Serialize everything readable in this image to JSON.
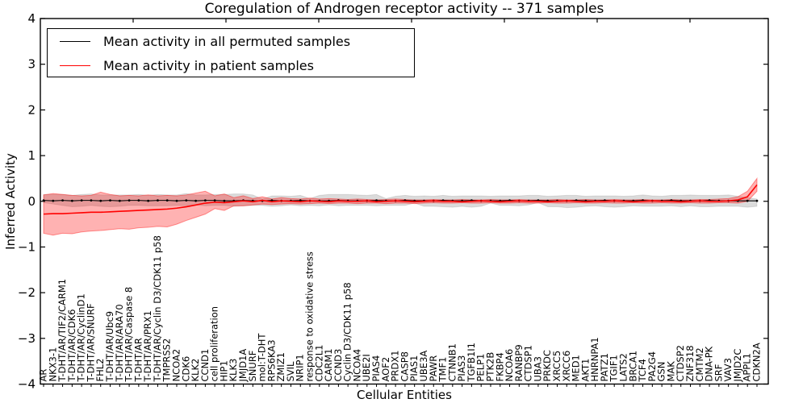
{
  "figure": {
    "title": "Coregulation of Androgen receptor activity -- 371 samples",
    "xlabel": "Cellular Entities",
    "ylabel": "Inferred Activity"
  },
  "colors": {
    "permuted_line": "#000000",
    "patient_line": "#ff0000",
    "permuted_band": "rgba(0,0,0,0.14)",
    "patient_band": "rgba(255,0,0,0.30)",
    "frame": "#000000"
  },
  "chart_data": {
    "type": "line",
    "title": "Coregulation of Androgen receptor activity -- 371 samples",
    "xlabel": "Cellular Entities",
    "ylabel": "Inferred Activity",
    "ylim": [
      -4,
      4
    ],
    "grid": false,
    "legend_position": "upper left",
    "yticks": [
      {
        "value": 4,
        "label": "4"
      },
      {
        "value": 3,
        "label": "3"
      },
      {
        "value": 2,
        "label": "2"
      },
      {
        "value": 1,
        "label": "1"
      },
      {
        "value": 0,
        "label": "0"
      },
      {
        "value": -1,
        "label": "−1"
      },
      {
        "value": -2,
        "label": "−2"
      },
      {
        "value": -3,
        "label": "−3"
      },
      {
        "value": -4,
        "label": "−4"
      }
    ],
    "categories": [
      "AR",
      "NKX3-1",
      "T-DHT/AR/TIF2/CARM1",
      "T-DHT/AR/CDK6",
      "T-DHT/AR/CyclinD1",
      "T-DHT/AR/SNURF",
      "FHL2",
      "T-DHT/AR/Ubc9",
      "T-DHT/AR/ARA70",
      "T-DHT/AR/Caspase 8",
      "T-DHT/AR",
      "T-DHT/AR/PRX1",
      "T-DHT/AR/Cyclin D3/CDK11 p58",
      "TMPRSS2",
      "NCOA2",
      "CDK6",
      "KLK2",
      "CCND1",
      "cell proliferation",
      "HIP1",
      "KLK3",
      "JMJD1A",
      "SNURF",
      "mol:T-DHT",
      "RPS6KA3",
      "ZMIZ1",
      "SVIL",
      "NRIP1",
      "response to oxidative stress",
      "CDC2L1",
      "CARM1",
      "CCND3",
      "Cyclin D3/CDK11 p58",
      "NCOA4",
      "UBE2I",
      "PIAS4",
      "AOF2",
      "PRDX1",
      "CASP8",
      "PIAS1",
      "UBE3A",
      "PAWR",
      "TMF1",
      "CTNNB1",
      "PIAS3",
      "TGFB1I1",
      "PELP1",
      "PTK2B",
      "FKBP4",
      "NCOA6",
      "RANBP9",
      "CTDSP1",
      "UBA3",
      "PRKDC",
      "XRCC5",
      "XRCC6",
      "MED1",
      "AKT1",
      "HNRNPA1",
      "PATZ1",
      "TGIF1",
      "LATS2",
      "BRCA1",
      "TCF4",
      "PA2G4",
      "GSN",
      "MAK",
      "CTDSP2",
      "ZNF318",
      "CMTM2",
      "DNA-PK",
      "SRF",
      "VAV3",
      "JMJD2C",
      "APPL1",
      "CDKN2A"
    ],
    "series": [
      {
        "name": "Mean activity in all permuted samples",
        "color": "#000000",
        "band_color": "rgba(0,0,0,0.14)",
        "markers": true,
        "values": [
          0.02,
          0.01,
          0.02,
          0.01,
          0.02,
          0.02,
          0.01,
          0.02,
          0.01,
          0.02,
          0.02,
          0.01,
          0.02,
          0.02,
          0.01,
          0.02,
          0.01,
          0.02,
          0.02,
          0.01,
          0.01,
          0.02,
          0.01,
          0.01,
          0.02,
          0.01,
          0.01,
          0.02,
          0.01,
          0.01,
          0.01,
          0.02,
          0.01,
          0.01,
          0.01,
          0.02,
          0.01,
          0.01,
          0.02,
          0.01,
          0.01,
          0.01,
          0.02,
          0.01,
          0.01,
          0.02,
          0.01,
          0.01,
          0.01,
          0.02,
          0.01,
          0.01,
          0.02,
          0.01,
          0.01,
          0.01,
          0.02,
          0.01,
          0.01,
          0.02,
          0.01,
          0.01,
          0.01,
          0.02,
          0.01,
          0.01,
          0.02,
          0.01,
          0.01,
          0.01,
          0.02,
          0.01,
          0.01,
          0.01,
          0.01,
          0.01
        ],
        "band_halfwidth": [
          0.13,
          0.14,
          0.13,
          0.12,
          0.13,
          0.14,
          0.13,
          0.12,
          0.13,
          0.12,
          0.13,
          0.12,
          0.13,
          0.12,
          0.13,
          0.15,
          0.13,
          0.12,
          0.13,
          0.14,
          0.15,
          0.14,
          0.13,
          0.04,
          0.1,
          0.11,
          0.1,
          0.11,
          0.05,
          0.12,
          0.14,
          0.13,
          0.14,
          0.13,
          0.12,
          0.13,
          0.05,
          0.1,
          0.11,
          0.1,
          0.11,
          0.1,
          0.11,
          0.1,
          0.11,
          0.1,
          0.11,
          0.1,
          0.11,
          0.1,
          0.11,
          0.12,
          0.11,
          0.1,
          0.11,
          0.12,
          0.11,
          0.1,
          0.11,
          0.1,
          0.11,
          0.1,
          0.11,
          0.12,
          0.11,
          0.1,
          0.11,
          0.12,
          0.13,
          0.12,
          0.11,
          0.12,
          0.13,
          0.1,
          0.07,
          0.04
        ]
      },
      {
        "name": "Mean activity in patient samples",
        "color": "#ff0000",
        "band_color": "rgba(255,0,0,0.30)",
        "markers": false,
        "values": [
          -0.28,
          -0.27,
          -0.27,
          -0.26,
          -0.25,
          -0.24,
          -0.24,
          -0.23,
          -0.22,
          -0.21,
          -0.2,
          -0.19,
          -0.18,
          -0.17,
          -0.15,
          -0.12,
          -0.08,
          -0.04,
          -0.02,
          -0.03,
          -0.01,
          0.01,
          -0.01,
          0.02,
          -0.01,
          0.01,
          0.0,
          -0.01,
          0.01,
          0.0,
          -0.01,
          0.01,
          0.0,
          0.0,
          0.01,
          -0.01,
          0.0,
          0.01,
          0.0,
          -0.01,
          0.0,
          0.01,
          0.0,
          0.0,
          -0.01,
          0.0,
          0.01,
          0.0,
          -0.01,
          0.0,
          0.01,
          0.0,
          0.0,
          -0.01,
          0.0,
          0.01,
          0.0,
          -0.01,
          0.0,
          0.0,
          0.01,
          0.0,
          -0.01,
          0.0,
          0.01,
          0.0,
          0.0,
          -0.01,
          0.0,
          0.01,
          0.0,
          0.0,
          0.01,
          0.03,
          0.1,
          0.36
        ],
        "band_upper": [
          0.14,
          0.17,
          0.15,
          0.13,
          0.12,
          0.13,
          0.2,
          0.15,
          0.12,
          0.13,
          0.12,
          0.14,
          0.12,
          0.13,
          0.12,
          0.14,
          0.18,
          0.22,
          0.12,
          0.16,
          0.08,
          0.12,
          0.06,
          0.1,
          0.05,
          0.08,
          0.06,
          0.05,
          0.07,
          0.05,
          0.06,
          0.05,
          0.04,
          0.05,
          0.04,
          0.03,
          0.04,
          0.05,
          0.04,
          0.03,
          0.03,
          0.04,
          0.03,
          0.03,
          0.04,
          0.03,
          0.03,
          0.04,
          0.03,
          0.03,
          0.04,
          0.03,
          0.03,
          0.03,
          0.04,
          0.03,
          0.03,
          0.04,
          0.03,
          0.03,
          0.04,
          0.03,
          0.03,
          0.04,
          0.03,
          0.03,
          0.04,
          0.03,
          0.03,
          0.04,
          0.04,
          0.05,
          0.06,
          0.1,
          0.22,
          0.5
        ],
        "band_lower": [
          -0.7,
          -0.74,
          -0.7,
          -0.71,
          -0.67,
          -0.65,
          -0.64,
          -0.62,
          -0.6,
          -0.61,
          -0.58,
          -0.57,
          -0.55,
          -0.56,
          -0.5,
          -0.42,
          -0.35,
          -0.28,
          -0.16,
          -0.2,
          -0.1,
          -0.1,
          -0.08,
          -0.06,
          -0.07,
          -0.06,
          -0.05,
          -0.06,
          -0.05,
          -0.04,
          -0.05,
          -0.04,
          -0.04,
          -0.05,
          -0.04,
          -0.04,
          -0.05,
          -0.04,
          -0.04,
          -0.05,
          -0.04,
          -0.03,
          -0.04,
          -0.04,
          -0.03,
          -0.04,
          -0.04,
          -0.03,
          -0.04,
          -0.04,
          -0.03,
          -0.04,
          -0.04,
          -0.03,
          -0.04,
          -0.04,
          -0.03,
          -0.04,
          -0.04,
          -0.03,
          -0.04,
          -0.04,
          -0.03,
          -0.04,
          -0.04,
          -0.03,
          -0.04,
          -0.04,
          -0.03,
          -0.04,
          -0.04,
          -0.03,
          -0.03,
          -0.04,
          0.0,
          0.22
        ]
      }
    ]
  }
}
